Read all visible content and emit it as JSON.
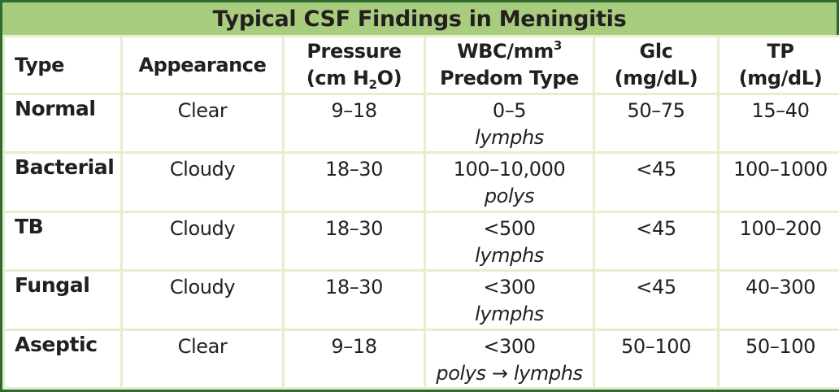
{
  "title": "Typical CSF Findings in Meningitis",
  "headers": {
    "type": "Type",
    "appearance": "Appearance",
    "pressure_line1": "Pressure",
    "pressure_pre": "(cm H",
    "pressure_sub": "2",
    "pressure_post": "O)",
    "wbc_pre": "WBC/mm",
    "wbc_sup": "3",
    "wbc_line2": "Predom Type",
    "glc_line1": "Glc",
    "glc_line2": "(mg/dL)",
    "tp_line1": "TP",
    "tp_line2": "(mg/dL)"
  },
  "rows": [
    {
      "type": "Normal",
      "appearance": "Clear",
      "pressure": "9–18",
      "wbc": "0–5",
      "predom": "lymphs",
      "glc": "50–75",
      "tp": "15–40"
    },
    {
      "type": "Bacterial",
      "appearance": "Cloudy",
      "pressure": "18–30",
      "wbc": "100–10,000",
      "predom": "polys",
      "glc": "<45",
      "tp": "100–1000"
    },
    {
      "type": "TB",
      "appearance": "Cloudy",
      "pressure": "18–30",
      "wbc": "<500",
      "predom": "lymphs",
      "glc": "<45",
      "tp": "100–200"
    },
    {
      "type": "Fungal",
      "appearance": "Cloudy",
      "pressure": "18–30",
      "wbc": "<300",
      "predom": "lymphs",
      "glc": "<45",
      "tp": "40–300"
    },
    {
      "type": "Aseptic",
      "appearance": "Clear",
      "pressure": "9–18",
      "wbc": "<300",
      "predom": "polys → lymphs",
      "glc": "50–100",
      "tp": "50–100"
    }
  ],
  "colors": {
    "title_bg": "#a9cd7f",
    "grid": "#e3efcf",
    "border": "#2f6b2f"
  }
}
